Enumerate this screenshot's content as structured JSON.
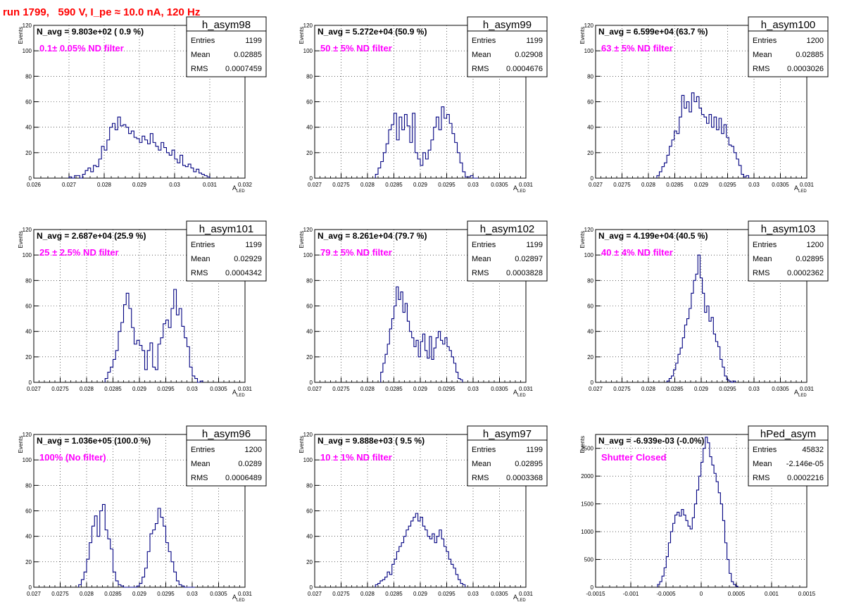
{
  "page": {
    "title": "run 1799,   590 V, I_pe ≈ 10.0 nA, 120 Hz"
  },
  "colors": {
    "hist_line": "#000080",
    "filter_label": "#ff00ff",
    "title": "#ff0000",
    "grid": "#000000"
  },
  "chart_data": [
    {
      "type": "histogram",
      "name": "h_asym98",
      "stats": {
        "entries": "1199",
        "mean": "0.02885",
        "rms": "0.0007459"
      },
      "navg": "N_avg = 9.803e+02 ( 0.9 %)",
      "label": "0.1± 0.05% ND filter",
      "xlim": [
        0.026,
        0.032
      ],
      "ylim": [
        0,
        120
      ],
      "xticks": [
        "0.026",
        "0.027",
        "0.028",
        "0.029",
        "0.03",
        "0.031",
        "0.032"
      ],
      "yticks": [
        "0",
        "20",
        "40",
        "60",
        "80",
        "100",
        "120"
      ],
      "ylabel": "Events",
      "xlabel_main": "A",
      "xlabel_sub": "LED",
      "bin_edges": [
        0.027,
        0.031
      ],
      "values": [
        1,
        0,
        2,
        2,
        0,
        3,
        6,
        8,
        5,
        10,
        9,
        15,
        25,
        22,
        30,
        40,
        43,
        38,
        48,
        41,
        42,
        40,
        35,
        37,
        32,
        31,
        28,
        33,
        30,
        27,
        35,
        28,
        25,
        22,
        28,
        24,
        20,
        18,
        22,
        15,
        12,
        18,
        10,
        9,
        11,
        8,
        5,
        7,
        4,
        3,
        2,
        1
      ]
    },
    {
      "type": "histogram",
      "name": "h_asym99",
      "stats": {
        "entries": "1199",
        "mean": "0.02908",
        "rms": "0.0004676"
      },
      "navg": "N_avg = 5.272e+04 (50.9 %)",
      "label": "50 ± 5% ND filter",
      "xlim": [
        0.027,
        0.031
      ],
      "ylim": [
        0,
        120
      ],
      "xticks": [
        "0.027",
        "0.0275",
        "0.028",
        "0.0285",
        "0.029",
        "0.0295",
        "0.03",
        "0.0305",
        "0.031"
      ],
      "yticks": [
        "0",
        "20",
        "40",
        "60",
        "80",
        "100",
        "120"
      ],
      "ylabel": "Events",
      "xlabel_main": "A",
      "xlabel_sub": "LED",
      "bin_edges": [
        0.02815,
        0.0301
      ],
      "values": [
        3,
        8,
        13,
        20,
        27,
        38,
        42,
        51,
        30,
        48,
        38,
        50,
        41,
        28,
        51,
        20,
        15,
        10,
        20,
        15,
        22,
        30,
        40,
        48,
        38,
        56,
        47,
        50,
        43,
        35,
        28,
        20,
        12,
        5,
        1,
        1,
        2,
        0,
        0
      ]
    },
    {
      "type": "histogram",
      "name": "h_asym100",
      "stats": {
        "entries": "1200",
        "mean": "0.02885",
        "rms": "0.0003026"
      },
      "navg": "N_avg = 6.599e+04 (63.7 %)",
      "label": "63 ± 5% ND filter",
      "xlim": [
        0.027,
        0.031
      ],
      "ylim": [
        0,
        120
      ],
      "xticks": [
        "0.027",
        "0.0275",
        "0.028",
        "0.0285",
        "0.029",
        "0.0295",
        "0.03",
        "0.0305",
        "0.031"
      ],
      "yticks": [
        "0",
        "20",
        "40",
        "60",
        "80",
        "100",
        "120"
      ],
      "ylabel": "Events",
      "xlabel_main": "A",
      "xlabel_sub": "LED",
      "bin_edges": [
        0.02816,
        0.0299
      ],
      "values": [
        2,
        5,
        9,
        12,
        18,
        25,
        30,
        37,
        35,
        48,
        65,
        55,
        60,
        52,
        67,
        60,
        64,
        55,
        50,
        48,
        43,
        50,
        40,
        48,
        38,
        47,
        35,
        42,
        32,
        26,
        25,
        20,
        15,
        10,
        3,
        1,
        2
      ]
    },
    {
      "type": "histogram",
      "name": "h_asym101",
      "stats": {
        "entries": "1199",
        "mean": "0.02929",
        "rms": "0.0004342"
      },
      "navg": "N_avg = 2.687e+04 (25.9 %)",
      "label": "25 ± 2.5% ND filter",
      "xlim": [
        0.027,
        0.031
      ],
      "ylim": [
        0,
        120
      ],
      "xticks": [
        "0.027",
        "0.0275",
        "0.028",
        "0.0285",
        "0.029",
        "0.0295",
        "0.03",
        "0.0305",
        "0.031"
      ],
      "yticks": [
        "0",
        "20",
        "40",
        "60",
        "80",
        "100",
        "120"
      ],
      "ylabel": "Events",
      "xlabel_main": "A",
      "xlabel_sub": "LED",
      "bin_edges": [
        0.02835,
        0.0302
      ],
      "values": [
        3,
        8,
        12,
        18,
        25,
        40,
        47,
        61,
        70,
        58,
        43,
        30,
        33,
        29,
        25,
        10,
        25,
        31,
        12,
        10,
        30,
        35,
        46,
        49,
        43,
        58,
        73,
        53,
        58,
        44,
        35,
        28,
        12,
        5,
        3,
        0,
        1
      ]
    },
    {
      "type": "histogram",
      "name": "h_asym102",
      "stats": {
        "entries": "1199",
        "mean": "0.02897",
        "rms": "0.0003828"
      },
      "navg": "N_avg = 8.261e+04 (79.7 %)",
      "label": "79 ± 5% ND filter",
      "xlim": [
        0.027,
        0.031
      ],
      "ylim": [
        0,
        120
      ],
      "xticks": [
        "0.027",
        "0.0275",
        "0.028",
        "0.0285",
        "0.029",
        "0.0295",
        "0.03",
        "0.0305",
        "0.031"
      ],
      "yticks": [
        "0",
        "20",
        "40",
        "60",
        "80",
        "100",
        "120"
      ],
      "ylabel": "Events",
      "xlabel_main": "A",
      "xlabel_sub": "LED",
      "bin_edges": [
        0.02825,
        0.0298
      ],
      "values": [
        8,
        15,
        22,
        30,
        42,
        50,
        60,
        75,
        65,
        71,
        55,
        62,
        48,
        40,
        35,
        28,
        33,
        20,
        32,
        38,
        25,
        19,
        36,
        18,
        27,
        35,
        40,
        33,
        30,
        35,
        28,
        25,
        20,
        15,
        8,
        3,
        2
      ]
    },
    {
      "type": "histogram",
      "name": "h_asym103",
      "stats": {
        "entries": "1200",
        "mean": "0.02895",
        "rms": "0.0002362"
      },
      "navg": "N_avg = 4.199e+04 (40.5 %)",
      "label": "40 ± 4% ND filter",
      "xlim": [
        0.027,
        0.031
      ],
      "ylim": [
        0,
        120
      ],
      "xticks": [
        "0.027",
        "0.0275",
        "0.028",
        "0.0285",
        "0.029",
        "0.0295",
        "0.03",
        "0.0305",
        "0.031"
      ],
      "yticks": [
        "0",
        "20",
        "40",
        "60",
        "80",
        "100",
        "120"
      ],
      "ylabel": "Events",
      "xlabel_main": "A",
      "xlabel_sub": "LED",
      "bin_edges": [
        0.02835,
        0.02965
      ],
      "values": [
        1,
        3,
        5,
        10,
        15,
        22,
        27,
        35,
        45,
        50,
        58,
        70,
        80,
        85,
        100,
        82,
        70,
        55,
        60,
        48,
        51,
        38,
        32,
        28,
        18,
        12,
        5,
        2,
        1,
        0,
        1
      ]
    },
    {
      "type": "histogram",
      "name": "h_asym96",
      "stats": {
        "entries": "1200",
        "mean": "0.0289",
        "rms": "0.0006489"
      },
      "navg": "N_avg = 1.036e+05 (100.0 %)",
      "label": "100% (No filter)",
      "xlim": [
        0.027,
        0.031
      ],
      "ylim": [
        0,
        120
      ],
      "xticks": [
        "0.027",
        "0.0275",
        "0.028",
        "0.0285",
        "0.029",
        "0.0295",
        "0.03",
        "0.0305",
        "0.031"
      ],
      "yticks": [
        "0",
        "20",
        "40",
        "60",
        "80",
        "100",
        "120"
      ],
      "ylabel": "Events",
      "xlabel_main": "A",
      "xlabel_sub": "LED",
      "bin_edges": [
        0.02785,
        0.03005
      ],
      "values": [
        2,
        6,
        12,
        22,
        35,
        48,
        56,
        40,
        60,
        65,
        45,
        38,
        30,
        12,
        5,
        2,
        1,
        0,
        0,
        0,
        0,
        0,
        1,
        3,
        8,
        15,
        28,
        42,
        45,
        50,
        62,
        55,
        48,
        35,
        28,
        20,
        12,
        5,
        2,
        1,
        0,
        0,
        0,
        0
      ]
    },
    {
      "type": "histogram",
      "name": "h_asym97",
      "stats": {
        "entries": "1199",
        "mean": "0.02895",
        "rms": "0.0003368"
      },
      "navg": "N_avg = 9.888e+03 ( 9.5 %)",
      "label": "10 ± 1% ND filter",
      "xlim": [
        0.027,
        0.031
      ],
      "ylim": [
        0,
        120
      ],
      "xticks": [
        "0.027",
        "0.0275",
        "0.028",
        "0.0285",
        "0.029",
        "0.0295",
        "0.03",
        "0.0305",
        "0.031"
      ],
      "yticks": [
        "0",
        "20",
        "40",
        "60",
        "80",
        "100",
        "120"
      ],
      "ylabel": "Events",
      "xlabel_main": "A",
      "xlabel_sub": "LED",
      "bin_edges": [
        0.02815,
        0.02985
      ],
      "values": [
        2,
        3,
        5,
        6,
        8,
        12,
        10,
        18,
        22,
        28,
        32,
        35,
        40,
        45,
        48,
        52,
        55,
        58,
        52,
        55,
        48,
        45,
        40,
        38,
        42,
        35,
        40,
        45,
        38,
        32,
        28,
        22,
        18,
        15,
        10,
        6,
        3,
        2
      ]
    },
    {
      "type": "histogram",
      "name": "hPed_asym",
      "stats": {
        "entries": "45832",
        "mean": "-2.146e-05",
        "rms": "0.0002216"
      },
      "navg": "N_avg = -6.939e-03 (-0.0%)",
      "label": "Shutter Closed",
      "xlim": [
        -0.0015,
        0.0015
      ],
      "ylim": [
        0,
        2750
      ],
      "xticks": [
        "-0.0015",
        "-0.001",
        "-0.0005",
        "0",
        "0.0005",
        "0.001",
        "0.0015"
      ],
      "yticks": [
        "0",
        "500",
        "1000",
        "1500",
        "2000",
        "2500"
      ],
      "ylabel": "Events",
      "xlabel_main": "",
      "xlabel_sub": "",
      "bin_edges": [
        -0.00062,
        0.00052
      ],
      "values": [
        50,
        100,
        200,
        350,
        550,
        800,
        1000,
        1150,
        1300,
        1350,
        1280,
        1400,
        1300,
        1200,
        1100,
        1050,
        1250,
        1500,
        1750,
        2000,
        2250,
        2500,
        2700,
        2600,
        2350,
        2200,
        2050,
        1900,
        1700,
        1500,
        1200,
        800,
        500,
        250,
        100,
        50,
        20
      ]
    }
  ]
}
